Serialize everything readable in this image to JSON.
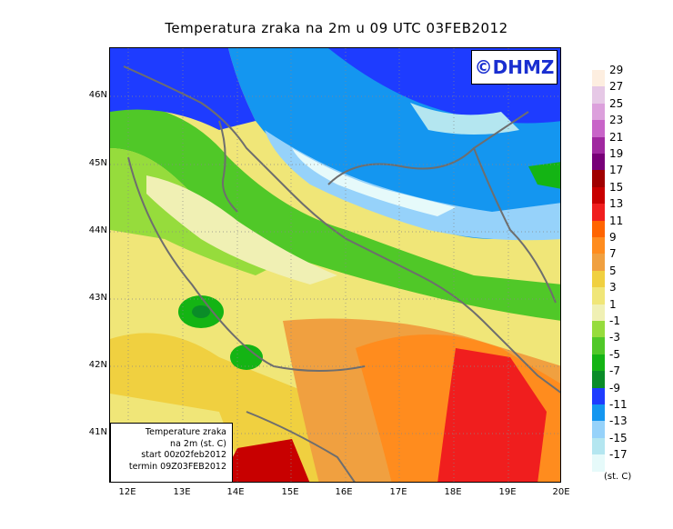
{
  "title": "Temperatura zraka na 2m u 09 UTC 03FEB2012",
  "logo": "©DHMZ",
  "info_box": {
    "line1": "Temperature zraka",
    "line2": "na 2m (st. C)",
    "line3": "start 00z02feb2012",
    "line4": "termin 09Z03FEB2012"
  },
  "lat_ticks": [
    "46N",
    "45N",
    "44N",
    "43N",
    "42N",
    "41N"
  ],
  "lon_ticks": [
    "12E",
    "13E",
    "14E",
    "15E",
    "16E",
    "17E",
    "18E",
    "19E",
    "20E"
  ],
  "legend": {
    "labels": [
      "29",
      "27",
      "25",
      "23",
      "21",
      "19",
      "17",
      "15",
      "13",
      "11",
      "9",
      "7",
      "5",
      "3",
      "1",
      "-1",
      "-3",
      "-5",
      "-7",
      "-9",
      "-11",
      "-13",
      "-15",
      "-17"
    ],
    "colors": [
      "#fdeee0",
      "#e6c8e6",
      "#dca0dc",
      "#c864c8",
      "#a028a0",
      "#780078",
      "#a00000",
      "#c80000",
      "#f01e1e",
      "#ff6400",
      "#ff8c1e",
      "#f0a040",
      "#f0d040",
      "#f0e678",
      "#f0f0b4",
      "#96dc3c",
      "#50c828",
      "#14b414",
      "#0a8c28",
      "#1e3cff",
      "#1496f0",
      "#96d2fa",
      "#b4e6f0",
      "#e6fafa"
    ],
    "units": "(st. C)"
  }
}
